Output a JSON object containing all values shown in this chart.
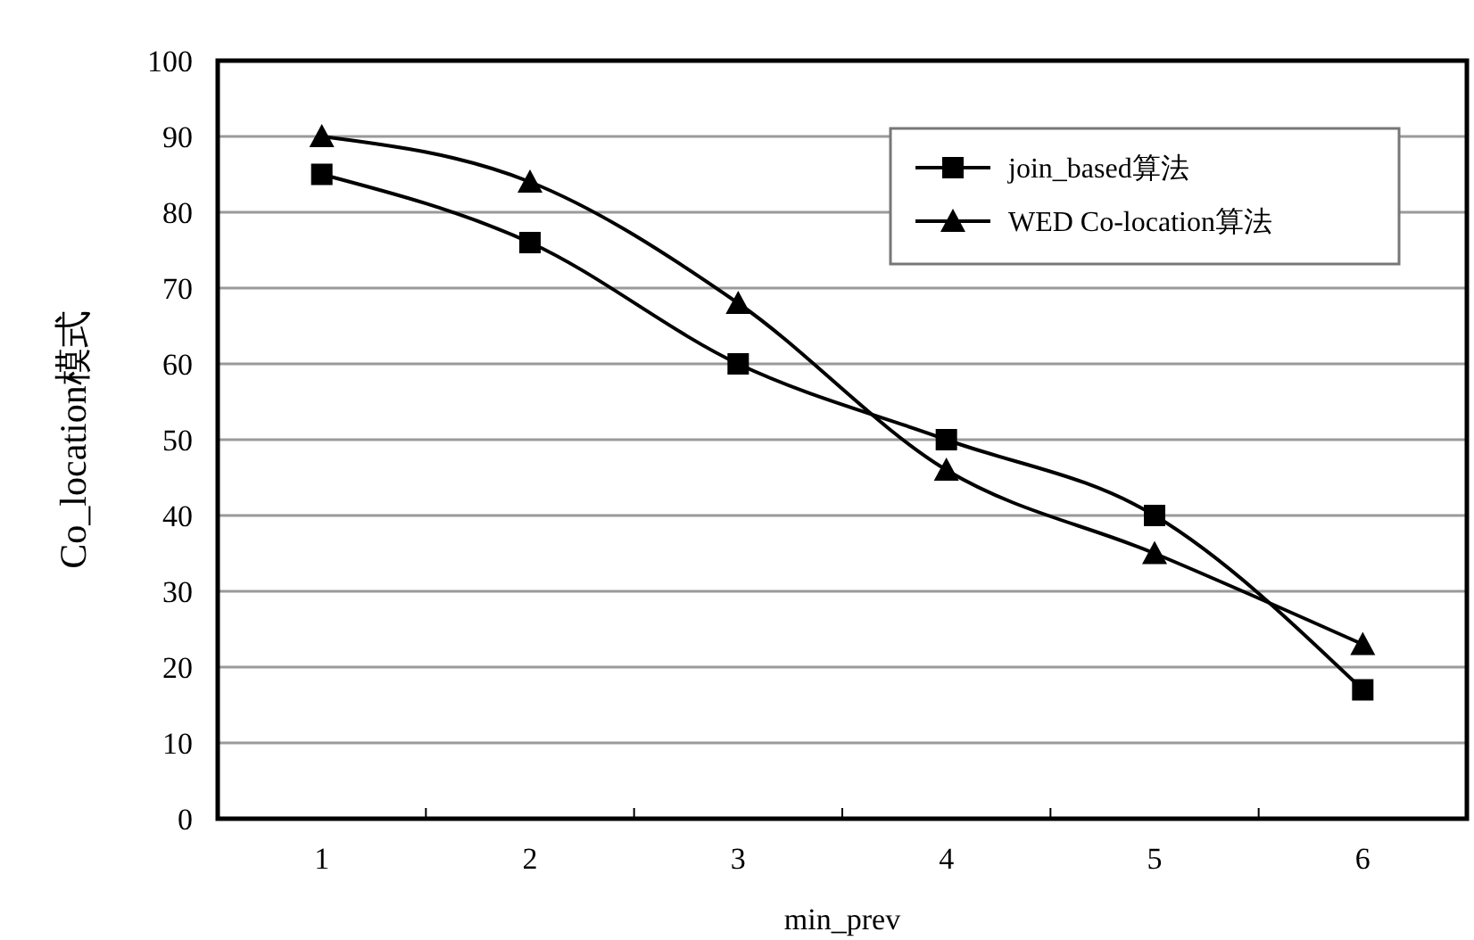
{
  "chart_data": {
    "type": "line",
    "xlabel": "min_prev",
    "ylabel": "Co_location模式",
    "categories": [
      "1",
      "2",
      "3",
      "4",
      "5",
      "6"
    ],
    "series": [
      {
        "name": "join_based算法",
        "color": "#000000",
        "marker": "square",
        "values": [
          85,
          76,
          60,
          50,
          40,
          17
        ]
      },
      {
        "name": "WED Co-location算法",
        "color": "#000000",
        "marker": "triangle",
        "values": [
          90,
          84,
          68,
          46,
          35,
          23
        ]
      }
    ],
    "ylim": [
      0,
      100
    ],
    "yticks": [
      0,
      10,
      20,
      30,
      40,
      50,
      60,
      70,
      80,
      90,
      100
    ],
    "grid": "y",
    "legend": "top right",
    "line_style": "solid"
  }
}
